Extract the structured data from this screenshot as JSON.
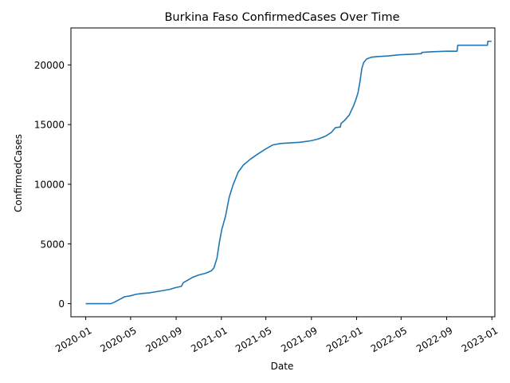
{
  "chart_data": {
    "type": "line",
    "title": "Burkina Faso  ConfirmedCases Over Time",
    "xlabel": "Date",
    "ylabel": "ConfirmedCases",
    "xlim": [
      "2019-11-22",
      "2023-01-09"
    ],
    "ylim": [
      -1100,
      23100
    ],
    "x_ticks": [
      {
        "date": "2020-01-01",
        "label": "2020-01"
      },
      {
        "date": "2020-05-01",
        "label": "2020-05"
      },
      {
        "date": "2020-09-01",
        "label": "2020-09"
      },
      {
        "date": "2021-01-01",
        "label": "2021-01"
      },
      {
        "date": "2021-05-01",
        "label": "2021-05"
      },
      {
        "date": "2021-09-01",
        "label": "2021-09"
      },
      {
        "date": "2022-01-01",
        "label": "2022-01"
      },
      {
        "date": "2022-05-01",
        "label": "2022-05"
      },
      {
        "date": "2022-09-01",
        "label": "2022-09"
      },
      {
        "date": "2023-01-01",
        "label": "2023-01"
      }
    ],
    "y_ticks": [
      0,
      5000,
      10000,
      15000,
      20000
    ],
    "grid": false,
    "series": [
      {
        "color": "#1f77b4",
        "points": [
          [
            "2020-01-01",
            0
          ],
          [
            "2020-03-09",
            0
          ],
          [
            "2020-03-20",
            150
          ],
          [
            "2020-04-01",
            350
          ],
          [
            "2020-04-15",
            580
          ],
          [
            "2020-04-30",
            650
          ],
          [
            "2020-05-15",
            780
          ],
          [
            "2020-06-01",
            850
          ],
          [
            "2020-06-20",
            900
          ],
          [
            "2020-07-05",
            980
          ],
          [
            "2020-07-25",
            1080
          ],
          [
            "2020-08-15",
            1200
          ],
          [
            "2020-08-31",
            1350
          ],
          [
            "2020-09-15",
            1450
          ],
          [
            "2020-09-20",
            1750
          ],
          [
            "2020-10-01",
            1950
          ],
          [
            "2020-10-15",
            2200
          ],
          [
            "2020-11-01",
            2400
          ],
          [
            "2020-11-20",
            2550
          ],
          [
            "2020-12-05",
            2750
          ],
          [
            "2020-12-12",
            3000
          ],
          [
            "2020-12-20",
            3800
          ],
          [
            "2020-12-27",
            5200
          ],
          [
            "2021-01-02",
            6200
          ],
          [
            "2021-01-12",
            7300
          ],
          [
            "2021-01-22",
            8900
          ],
          [
            "2021-02-01",
            9900
          ],
          [
            "2021-02-15",
            11000
          ],
          [
            "2021-03-01",
            11600
          ],
          [
            "2021-03-20",
            12100
          ],
          [
            "2021-04-10",
            12550
          ],
          [
            "2021-04-30",
            12950
          ],
          [
            "2021-05-20",
            13300
          ],
          [
            "2021-06-10",
            13420
          ],
          [
            "2021-07-01",
            13460
          ],
          [
            "2021-08-01",
            13520
          ],
          [
            "2021-08-31",
            13650
          ],
          [
            "2021-09-20",
            13800
          ],
          [
            "2021-10-10",
            14050
          ],
          [
            "2021-10-25",
            14350
          ],
          [
            "2021-11-05",
            14750
          ],
          [
            "2021-11-18",
            14800
          ],
          [
            "2021-11-20",
            15100
          ],
          [
            "2021-11-28",
            15300
          ],
          [
            "2021-12-05",
            15550
          ],
          [
            "2021-12-12",
            15800
          ],
          [
            "2021-12-18",
            16200
          ],
          [
            "2021-12-24",
            16600
          ],
          [
            "2021-12-30",
            17100
          ],
          [
            "2022-01-05",
            17700
          ],
          [
            "2022-01-10",
            18600
          ],
          [
            "2022-01-15",
            19700
          ],
          [
            "2022-01-20",
            20200
          ],
          [
            "2022-01-28",
            20500
          ],
          [
            "2022-02-10",
            20650
          ],
          [
            "2022-02-25",
            20700
          ],
          [
            "2022-03-25",
            20750
          ],
          [
            "2022-04-25",
            20850
          ],
          [
            "2022-05-31",
            20900
          ],
          [
            "2022-06-25",
            20950
          ],
          [
            "2022-06-26",
            21050
          ],
          [
            "2022-07-20",
            21100
          ],
          [
            "2022-08-31",
            21150
          ],
          [
            "2022-09-29",
            21150
          ],
          [
            "2022-10-01",
            21650
          ],
          [
            "2022-11-15",
            21650
          ],
          [
            "2022-12-20",
            21650
          ],
          [
            "2022-12-21",
            21980
          ],
          [
            "2022-12-31",
            21980
          ]
        ]
      }
    ]
  }
}
